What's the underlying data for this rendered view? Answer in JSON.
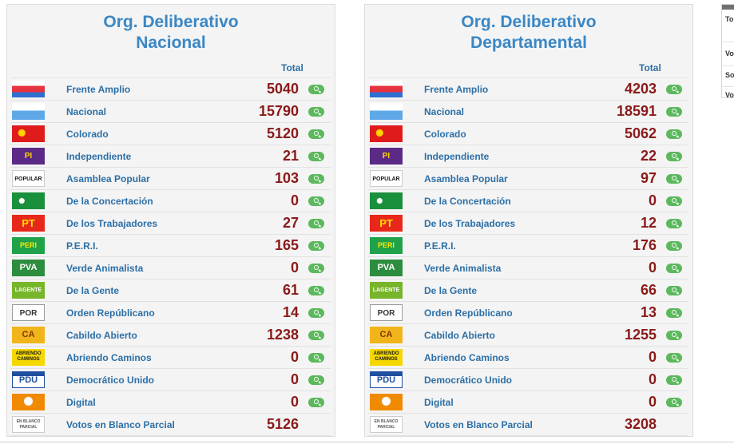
{
  "panels": [
    {
      "title_line1": "Org. Deliberativo",
      "title_line2": "Nacional",
      "total_header": "Total",
      "rows": [
        {
          "name": "Frente Amplio",
          "votes": "5040"
        },
        {
          "name": "Nacional",
          "votes": "15790"
        },
        {
          "name": "Colorado",
          "votes": "5120"
        },
        {
          "name": "Independiente",
          "votes": "21"
        },
        {
          "name": "Asamblea Popular",
          "votes": "103"
        },
        {
          "name": "De la Concertación",
          "votes": "0"
        },
        {
          "name": "De los Trabajadores",
          "votes": "27"
        },
        {
          "name": "P.E.R.I.",
          "votes": "165"
        },
        {
          "name": "Verde Animalista",
          "votes": "0"
        },
        {
          "name": "De la Gente",
          "votes": "61"
        },
        {
          "name": "Orden Repúblicano",
          "votes": "14"
        },
        {
          "name": "Cabildo Abierto",
          "votes": "1238"
        },
        {
          "name": "Abriendo Caminos",
          "votes": "0"
        },
        {
          "name": "Democrático Unido",
          "votes": "0"
        },
        {
          "name": "Digital",
          "votes": "0"
        },
        {
          "name": "Votos en Blanco Parcial",
          "votes": "5126"
        }
      ]
    },
    {
      "title_line1": "Org. Deliberativo",
      "title_line2": "Departamental",
      "total_header": "Total",
      "rows": [
        {
          "name": "Frente Amplio",
          "votes": "4203"
        },
        {
          "name": "Nacional",
          "votes": "18591"
        },
        {
          "name": "Colorado",
          "votes": "5062"
        },
        {
          "name": "Independiente",
          "votes": "22"
        },
        {
          "name": "Asamblea Popular",
          "votes": "97"
        },
        {
          "name": "De la Concertación",
          "votes": "0"
        },
        {
          "name": "De los Trabajadores",
          "votes": "12"
        },
        {
          "name": "P.E.R.I.",
          "votes": "176"
        },
        {
          "name": "Verde Animalista",
          "votes": "0"
        },
        {
          "name": "De la Gente",
          "votes": "66"
        },
        {
          "name": "Orden Repúblicano",
          "votes": "13"
        },
        {
          "name": "Cabildo Abierto",
          "votes": "1255"
        },
        {
          "name": "Abriendo Caminos",
          "votes": "0"
        },
        {
          "name": "Democrático Unido",
          "votes": "0"
        },
        {
          "name": "Digital",
          "votes": "0"
        },
        {
          "name": "Votos en Blanco Parcial",
          "votes": "3208"
        }
      ]
    }
  ],
  "logos": [
    {
      "icon": "frente-amplio-logo"
    },
    {
      "icon": "nacional-logo"
    },
    {
      "icon": "colorado-logo"
    },
    {
      "icon": "independiente-logo",
      "text": "PI"
    },
    {
      "icon": "asamblea-popular-logo",
      "text": "POPULAR"
    },
    {
      "icon": "concertacion-logo"
    },
    {
      "icon": "trabajadores-logo",
      "text": "PT"
    },
    {
      "icon": "peri-logo",
      "text": "PERI"
    },
    {
      "icon": "verde-animalista-logo",
      "text": "PVA"
    },
    {
      "icon": "de-la-gente-logo",
      "text": "LAGENTE"
    },
    {
      "icon": "orden-republicano-logo",
      "text": "POR"
    },
    {
      "icon": "cabildo-abierto-logo",
      "text": "CA"
    },
    {
      "icon": "abriendo-caminos-logo",
      "text": "ABRIENDO CAMINOS"
    },
    {
      "icon": "democratico-unido-logo",
      "text": "PDU"
    },
    {
      "icon": "digital-logo"
    },
    {
      "icon": "votos-blanco-logo",
      "text": "EN BLANCO PARCIAL"
    }
  ],
  "side": {
    "labels": [
      "To",
      "Vo",
      "So",
      "Vo"
    ]
  },
  "colors": {
    "title": "#3a87c5",
    "party": "#2c6fa6",
    "votes": "#8b1a1a",
    "zoom": "#5cb85c"
  }
}
